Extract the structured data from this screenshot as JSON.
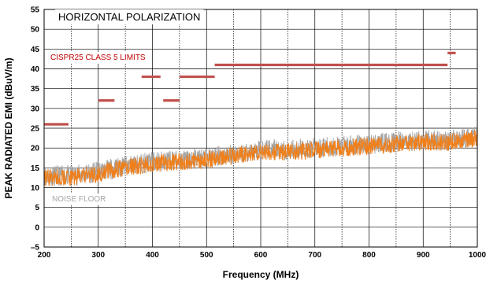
{
  "chart_data": {
    "type": "line",
    "title": "",
    "xlabel": "Frequency (MHz)",
    "ylabel": "PEAK RADIATED EMI (dBuV/m)",
    "xlim": [
      200,
      1000
    ],
    "ylim": [
      -5,
      55
    ],
    "x_ticks": [
      200,
      300,
      400,
      500,
      600,
      700,
      800,
      900,
      1000
    ],
    "y_ticks": [
      -5,
      0,
      5,
      10,
      15,
      20,
      25,
      30,
      35,
      40,
      45,
      50,
      55
    ],
    "grid": true,
    "annotations": {
      "polarization": "HORIZONTAL POLARIZATION",
      "limits_label": "CISPR25 CLASS 5 LIMITS",
      "noise_floor_label": "NOISE FLOOR"
    },
    "limit_segments": [
      {
        "x0": 200,
        "x1": 245,
        "y": 26
      },
      {
        "x0": 300,
        "x1": 330,
        "y": 32
      },
      {
        "x0": 380,
        "x1": 415,
        "y": 38
      },
      {
        "x0": 420,
        "x1": 450,
        "y": 32
      },
      {
        "x0": 450,
        "x1": 515,
        "y": 38
      },
      {
        "x0": 515,
        "x1": 945,
        "y": 41
      },
      {
        "x0": 945,
        "x1": 960,
        "y": 44
      }
    ],
    "series": [
      {
        "color": "#a6a6a6",
        "x": [
          200,
          250,
          300,
          350,
          400,
          450,
          500,
          550,
          600,
          650,
          700,
          750,
          800,
          850,
          900,
          950,
          1000
        ],
        "values": [
          13,
          13,
          14,
          15.5,
          16.5,
          17,
          17.5,
          18.5,
          19.5,
          19.5,
          20,
          20.5,
          21,
          21.5,
          22,
          22,
          23
        ]
      },
      {
        "color": "#f07f1a",
        "x": [
          200,
          250,
          300,
          350,
          400,
          450,
          500,
          550,
          600,
          650,
          700,
          750,
          800,
          850,
          900,
          950,
          1000
        ],
        "values": [
          12.5,
          12.5,
          13.5,
          15,
          16,
          16.5,
          17,
          18,
          19,
          19,
          19.5,
          20,
          20.5,
          21,
          21.5,
          21.5,
          22.5
        ]
      }
    ],
    "colors": {
      "limit": "#c0504d",
      "limit_label": "#c00000",
      "noise_label": "#a6a6a6",
      "grid": "#000000"
    }
  }
}
